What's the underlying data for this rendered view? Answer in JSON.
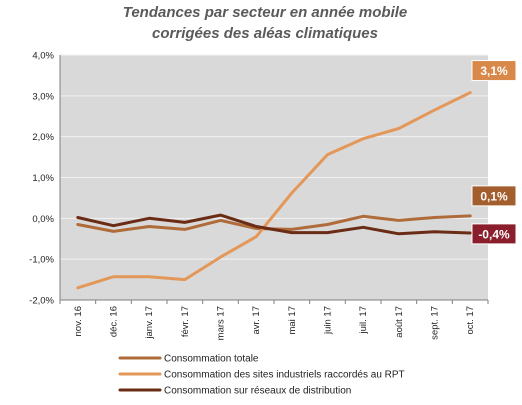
{
  "chart_data": {
    "type": "line",
    "title_lines": [
      "Tendances par secteur en année mobile",
      "corrigées des aléas climatiques"
    ],
    "categories": [
      "nov. 16",
      "déc. 16",
      "janv. 17",
      "févr. 17",
      "mars 17",
      "avr. 17",
      "mai 17",
      "juin 17",
      "juil. 17",
      "août 17",
      "sept. 17",
      "oct. 17"
    ],
    "ylim": [
      -2.0,
      4.0
    ],
    "yticks": [
      "-2,0%",
      "-1,0%",
      "0,0%",
      "1,0%",
      "2,0%",
      "3,0%",
      "4,0%"
    ],
    "grid": true,
    "legend_position": "bottom",
    "series": [
      {
        "name": "Consommation totale",
        "color": "#b06b3b",
        "values": [
          -0.15,
          -0.32,
          -0.2,
          -0.27,
          -0.05,
          -0.25,
          -0.27,
          -0.15,
          0.05,
          -0.05,
          0.02,
          0.06
        ],
        "callout": "0,1%",
        "callout_color": "#a35e2d"
      },
      {
        "name": "Consommation des sites industriels raccordés au RPT",
        "color": "#e3985a",
        "values": [
          -1.7,
          -1.43,
          -1.43,
          -1.5,
          -0.95,
          -0.45,
          0.62,
          1.56,
          1.95,
          2.2,
          2.65,
          3.08
        ],
        "callout": "3,1%",
        "callout_color": "#d8894a"
      },
      {
        "name": "Consommation sur réseaux de distribution",
        "color": "#6b2c16",
        "values": [
          0.02,
          -0.18,
          0.0,
          -0.1,
          0.08,
          -0.2,
          -0.35,
          -0.35,
          -0.22,
          -0.38,
          -0.33,
          -0.36
        ],
        "callout": "-0,4%",
        "callout_color": "#8a1e2c"
      }
    ]
  }
}
